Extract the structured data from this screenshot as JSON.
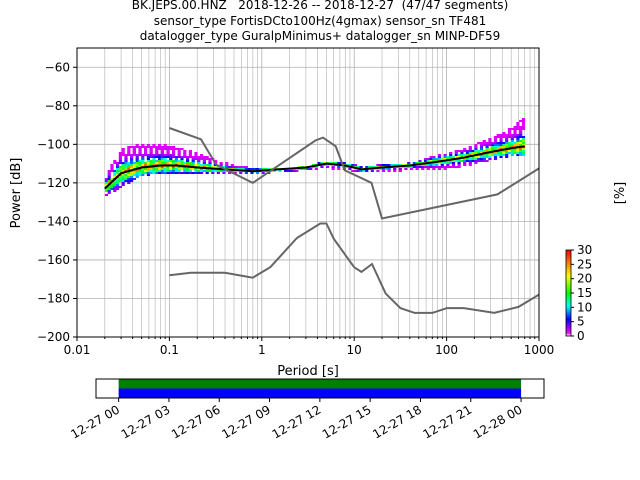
{
  "titles": [
    "BK.JEPS.00.HNZ   2018-12-26 -- 2018-12-27  (47/47 segments)",
    "sensor_type FortisDCto100Hz(4gmax) sensor_sn TF481",
    "datalogger_type GuralpMinimus+ datalogger_sn MINP-DF59"
  ],
  "chart_data": [
    {
      "type": "heatmap",
      "xlabel": "Period [s]",
      "ylabel": "Power [dB]",
      "xscale": "log",
      "xlim": [
        0.01,
        1000
      ],
      "ylim": [
        -200,
        -50
      ],
      "xticks": [
        0.01,
        0.1,
        1,
        10,
        100,
        1000
      ],
      "xticklabels": [
        "0.01",
        "0.1",
        "1",
        "10",
        "100",
        "1000"
      ],
      "yticks": [
        -60,
        -80,
        -100,
        -120,
        -140,
        -160,
        -180,
        -200
      ],
      "yticklabels": [
        "−60",
        "−80",
        "−100",
        "−120",
        "−140",
        "−160",
        "−180",
        "−200"
      ],
      "grid": true,
      "colorbar": {
        "label": "[%]",
        "range": [
          0,
          30
        ],
        "ticks": [
          0,
          5,
          10,
          15,
          20,
          25,
          30
        ],
        "ticklabels": [
          "0",
          "5",
          "10",
          "15",
          "20",
          "25",
          "30"
        ]
      },
      "psd_band": {
        "period": [
          0.02,
          0.03,
          0.05,
          0.08,
          0.12,
          0.2,
          0.4,
          0.8,
          1.5,
          3,
          5,
          8,
          12,
          20,
          40,
          80,
          150,
          300,
          500,
          700
        ],
        "upper": [
          -117,
          -103,
          -100,
          -100,
          -102,
          -105,
          -110,
          -113,
          -113,
          -112,
          -109,
          -110,
          -112,
          -111,
          -110,
          -106,
          -103,
          -97,
          -92,
          -86
        ],
        "lower": [
          -127,
          -122,
          -116,
          -115,
          -115,
          -115,
          -115,
          -115,
          -114,
          -113,
          -112,
          -113,
          -114,
          -114,
          -113,
          -113,
          -111,
          -108,
          -106,
          -105
        ],
        "mode": [
          -123,
          -115,
          -112,
          -111,
          -111,
          -112,
          -113,
          -114,
          -113,
          -112,
          -110,
          -111,
          -113,
          -112,
          -111,
          -109,
          -107,
          -104,
          -102,
          -101
        ]
      },
      "nhnm": {
        "period": [
          0.1,
          0.22,
          0.32,
          0.8,
          3.8,
          4.6,
          6.3,
          7.9,
          15.4,
          20,
          354.8,
          1000
        ],
        "power": [
          -91.5,
          -97.4,
          -110.5,
          -120,
          -98,
          -96.5,
          -101,
          -113.5,
          -120,
          -138.5,
          -126,
          -112.5
        ]
      },
      "nlnm": {
        "period": [
          0.1,
          0.17,
          0.4,
          0.8,
          1.24,
          2.4,
          4.3,
          5.0,
          6.0,
          10.0,
          12.0,
          15.6,
          21.9,
          31.6,
          45.0,
          70.0,
          101.0,
          154.0,
          328.0,
          600.0,
          1000.0
        ],
        "power": [
          -168.0,
          -166.7,
          -166.7,
          -169.2,
          -163.7,
          -148.6,
          -141.1,
          -141.1,
          -149.0,
          -163.8,
          -166.2,
          -162.1,
          -177.5,
          -185.0,
          -187.5,
          -187.5,
          -185.0,
          -185.0,
          -187.5,
          -184.4,
          -178.0
        ]
      }
    },
    {
      "type": "timeline",
      "tick_labels": [
        "12-27 00",
        "12-27 03",
        "12-27 06",
        "12-27 09",
        "12-27 12",
        "12-27 15",
        "12-27 18",
        "12-27 21",
        "12-28 00"
      ],
      "range": [
        "12-26 22:39",
        "12-28 01:22"
      ],
      "data_span": [
        "12-27 00",
        "12-28 00"
      ],
      "bands": [
        {
          "name": "",
          "color": "#008000"
        },
        {
          "name": "",
          "color": "#0000ff"
        }
      ]
    }
  ]
}
